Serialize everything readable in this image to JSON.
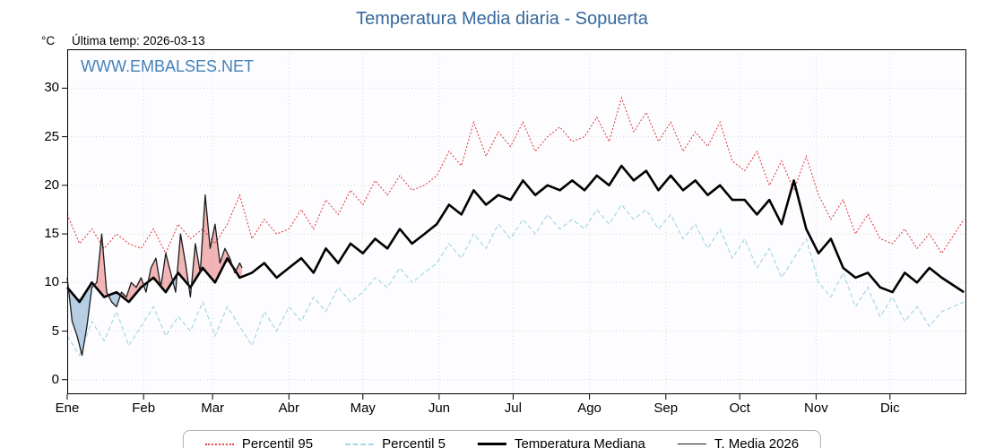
{
  "header": {
    "title": "Temperatura Media diaria - Sopuerta",
    "unit_label": "°C",
    "last_temp_label": "Última temp: 2026-03-13",
    "watermark": "WWW.EMBALSES.NET"
  },
  "chart_data": {
    "type": "line",
    "title": "Temperatura Media diaria - Sopuerta",
    "ylabel": "°C",
    "ylim": [
      -1.5,
      34
    ],
    "y_ticks": [
      0,
      5,
      10,
      15,
      20,
      25,
      30
    ],
    "x_domain": [
      1,
      366
    ],
    "grid": true,
    "legend_position": "bottom",
    "month_ticks": {
      "days": [
        1,
        32,
        60,
        91,
        121,
        152,
        182,
        213,
        244,
        274,
        305,
        335
      ],
      "labels": [
        "Ene",
        "Feb",
        "Mar",
        "Abr",
        "May",
        "Jun",
        "Jul",
        "Ago",
        "Sep",
        "Oct",
        "Nov",
        "Dic"
      ]
    },
    "colors": {
      "p95": "#e04545",
      "p5": "#a6d6e4",
      "median": "#000000",
      "t2026": "#1a1a1a",
      "fill_above": "rgba(228,90,90,0.45)",
      "fill_below": "rgba(110,160,200,0.5)",
      "title": "#35689e",
      "watermark": "#4482b8"
    },
    "climatology_x": [
      1,
      6,
      11,
      16,
      21,
      26,
      31,
      36,
      41,
      46,
      51,
      56,
      61,
      66,
      71,
      76,
      81,
      86,
      91,
      96,
      101,
      106,
      111,
      116,
      121,
      126,
      131,
      136,
      141,
      146,
      151,
      156,
      161,
      166,
      171,
      176,
      181,
      186,
      191,
      196,
      201,
      206,
      211,
      216,
      221,
      226,
      231,
      236,
      241,
      246,
      251,
      256,
      261,
      266,
      271,
      276,
      281,
      286,
      291,
      296,
      301,
      306,
      311,
      316,
      321,
      326,
      331,
      336,
      341,
      346,
      351,
      356,
      365
    ],
    "series": [
      {
        "name": "Percentil 95",
        "style": "red-dotted",
        "values": [
          17.0,
          14.0,
          15.5,
          13.5,
          15.0,
          14.0,
          13.5,
          15.5,
          13.0,
          16.0,
          14.5,
          15.5,
          14.0,
          16.0,
          19.0,
          14.5,
          16.5,
          15.0,
          15.5,
          17.5,
          15.5,
          18.5,
          17.0,
          19.5,
          18.0,
          20.5,
          19.0,
          21.0,
          19.5,
          20.0,
          21.0,
          23.5,
          22.0,
          26.5,
          23.0,
          25.5,
          24.0,
          26.5,
          23.5,
          25.0,
          26.0,
          24.5,
          25.0,
          27.0,
          24.5,
          29.0,
          25.5,
          27.5,
          24.5,
          26.5,
          23.5,
          25.5,
          24.0,
          26.5,
          22.5,
          21.5,
          23.5,
          20.0,
          22.5,
          19.5,
          23.0,
          19.0,
          16.5,
          18.5,
          15.0,
          17.0,
          14.5,
          14.0,
          15.5,
          13.5,
          15.0,
          13.0,
          16.5
        ]
      },
      {
        "name": "Percentil 5",
        "style": "lightblue-dashed",
        "values": [
          4.5,
          2.5,
          6.0,
          4.0,
          7.0,
          3.5,
          5.5,
          7.5,
          4.5,
          6.5,
          5.0,
          8.0,
          4.5,
          7.5,
          5.5,
          3.5,
          7.0,
          5.0,
          7.5,
          6.0,
          8.5,
          7.0,
          9.5,
          8.0,
          9.0,
          10.5,
          9.5,
          11.5,
          10.0,
          11.0,
          12.0,
          14.0,
          12.5,
          15.0,
          13.5,
          16.0,
          14.5,
          16.5,
          15.0,
          17.0,
          15.5,
          16.5,
          15.5,
          17.5,
          16.0,
          18.0,
          16.5,
          17.5,
          15.5,
          17.0,
          14.5,
          16.0,
          13.5,
          15.5,
          12.5,
          14.5,
          11.5,
          13.5,
          10.5,
          12.5,
          14.5,
          10.0,
          8.5,
          11.0,
          7.5,
          9.5,
          6.5,
          8.5,
          6.0,
          7.5,
          5.5,
          7.0,
          8.0
        ]
      },
      {
        "name": "Temperatura Mediana",
        "style": "black-thick",
        "values": [
          9.5,
          8.0,
          10.0,
          8.5,
          9.0,
          8.0,
          9.5,
          10.5,
          9.0,
          11.0,
          9.5,
          11.5,
          10.0,
          12.5,
          10.5,
          11.0,
          12.0,
          10.5,
          11.5,
          12.5,
          11.0,
          13.5,
          12.0,
          14.0,
          13.0,
          14.5,
          13.5,
          15.5,
          14.0,
          15.0,
          16.0,
          18.0,
          17.0,
          19.5,
          18.0,
          19.0,
          18.5,
          20.5,
          19.0,
          20.0,
          19.5,
          20.5,
          19.5,
          21.0,
          20.0,
          22.0,
          20.5,
          21.5,
          19.5,
          21.0,
          19.5,
          20.5,
          19.0,
          20.0,
          18.5,
          18.5,
          17.0,
          18.5,
          16.0,
          20.5,
          15.5,
          13.0,
          14.5,
          11.5,
          10.5,
          11.0,
          9.5,
          9.0,
          11.0,
          10.0,
          11.5,
          10.5,
          9.0
        ]
      }
    ],
    "t2026": {
      "name": "T. Media 2026",
      "x": [
        1,
        3,
        5,
        7,
        9,
        11,
        13,
        15,
        17,
        19,
        21,
        23,
        25,
        27,
        29,
        31,
        33,
        35,
        37,
        39,
        41,
        43,
        45,
        47,
        49,
        51,
        53,
        55,
        57,
        59,
        61,
        63,
        65,
        67,
        69,
        71,
        72
      ],
      "values": [
        10.5,
        6.0,
        4.5,
        2.5,
        5.5,
        9.5,
        10.0,
        15.0,
        9.0,
        8.0,
        7.5,
        9.0,
        8.5,
        10.0,
        9.5,
        10.5,
        9.0,
        11.5,
        12.5,
        9.5,
        13.0,
        11.0,
        9.0,
        15.0,
        12.0,
        8.5,
        14.0,
        11.0,
        19.0,
        13.5,
        16.0,
        12.0,
        13.5,
        12.5,
        11.0,
        12.0,
        11.5
      ]
    },
    "legend": [
      "Percentil 95",
      "Percentil 5",
      "Temperatura Mediana",
      "T. Media 2026"
    ]
  }
}
